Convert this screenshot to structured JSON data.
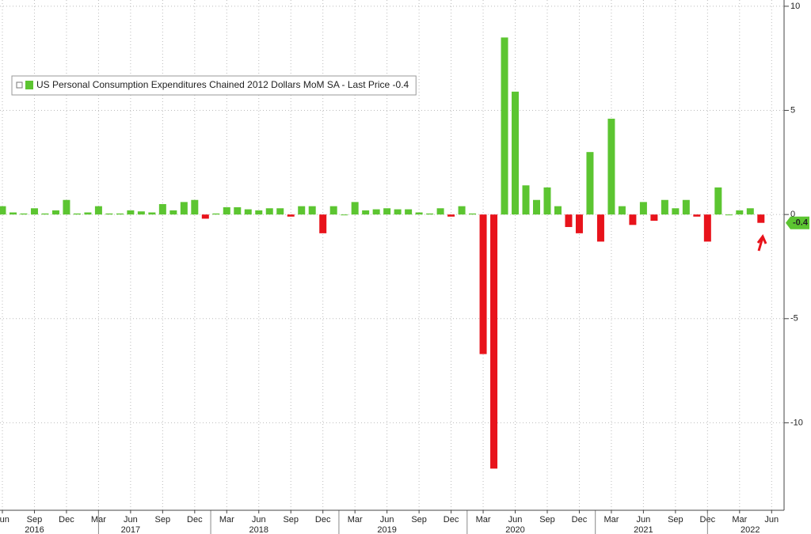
{
  "chart_data": {
    "type": "bar",
    "categories": [
      "Jun",
      null,
      null,
      "Sep",
      null,
      null,
      "Dec",
      null,
      null,
      "Mar",
      null,
      null,
      "Jun",
      null,
      null,
      "Sep",
      null,
      null,
      "Dec",
      null,
      null,
      "Mar",
      null,
      null,
      "Jun",
      null,
      null,
      "Sep",
      null,
      null,
      "Dec",
      null,
      null,
      "Mar",
      null,
      null,
      "Jun",
      null,
      null,
      "Sep",
      null,
      null,
      "Dec",
      null,
      null,
      "Mar",
      null,
      null,
      "Jun",
      null,
      null,
      "Sep",
      null,
      null,
      "Dec",
      null,
      null,
      "Mar",
      null,
      null,
      "Jun",
      null,
      null,
      "Sep",
      null,
      null,
      "Dec",
      null,
      null,
      "Mar",
      null,
      null,
      "Jun"
    ],
    "year_labels": [
      {
        "at": 3,
        "label": "2016"
      },
      {
        "at": 12,
        "label": "2017"
      },
      {
        "at": 24,
        "label": "2018"
      },
      {
        "at": 36,
        "label": "2019"
      },
      {
        "at": 48,
        "label": "2020"
      },
      {
        "at": 60,
        "label": "2021"
      },
      {
        "at": 70,
        "label": "2022"
      }
    ],
    "series": [
      {
        "name": "US Personal Consumption Expenditures Chained 2012 Dollars MoM SA - Last Price -0.4",
        "color": "#5cc531",
        "negative_color": "#e8131b",
        "values": [
          0.4,
          0.1,
          0.05,
          0.3,
          0.05,
          0.2,
          0.7,
          0.05,
          0.1,
          0.4,
          0.05,
          0.05,
          0.2,
          0.15,
          0.1,
          0.5,
          0.2,
          0.6,
          0.7,
          -0.2,
          0.05,
          0.35,
          0.35,
          0.25,
          0.2,
          0.3,
          0.3,
          -0.1,
          0.4,
          0.4,
          -0.9,
          0.4,
          0.0,
          0.6,
          0.2,
          0.25,
          0.3,
          0.25,
          0.25,
          0.1,
          0.05,
          0.3,
          -0.1,
          0.4,
          0.05,
          -6.7,
          -12.2,
          8.5,
          5.9,
          1.4,
          0.7,
          1.3,
          0.4,
          -0.6,
          -0.9,
          3.0,
          -1.3,
          4.6,
          0.4,
          -0.5,
          0.6,
          -0.3,
          0.7,
          0.3,
          0.7,
          -0.1,
          -1.3,
          1.3,
          0.0,
          0.2,
          0.3,
          -0.4,
          null
        ]
      }
    ],
    "ylim": [
      -14.2,
      10.3
    ],
    "yticks": [
      -10,
      -5,
      0,
      5,
      10
    ],
    "grid": true
  }
}
